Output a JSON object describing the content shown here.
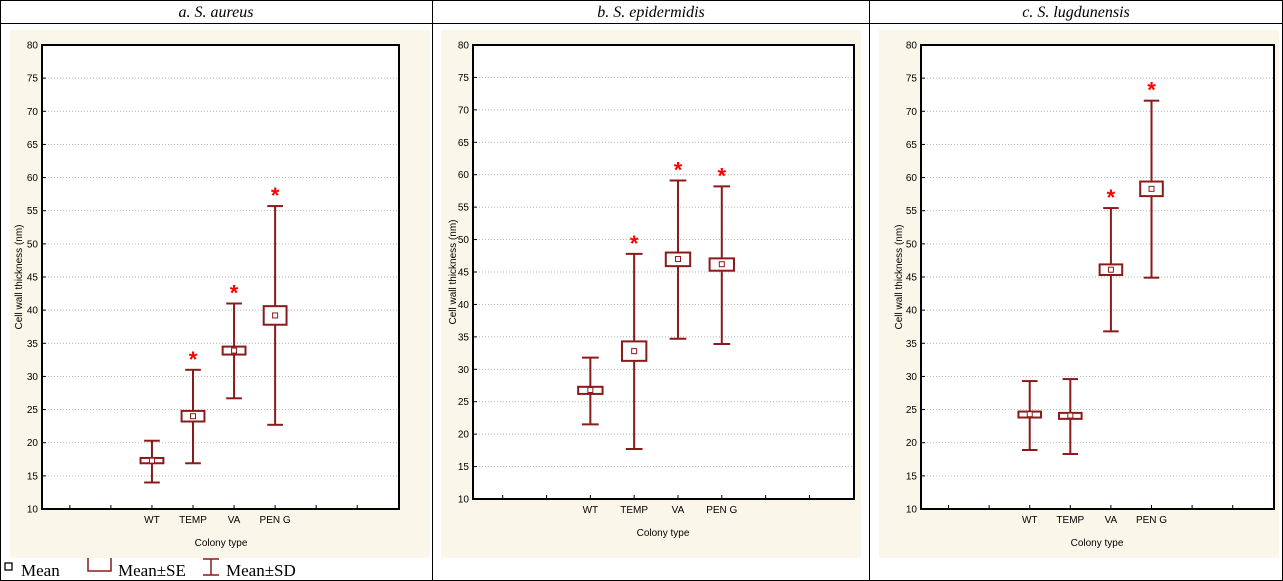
{
  "legend": {
    "mean_label": "Mean",
    "se_label": "Mean±SE",
    "sd_label": "Mean±SD"
  },
  "colors": {
    "box": "#8b1a1a",
    "star": "#ff0000",
    "panel_bg": "#fbf6ea",
    "grid": "#999999"
  },
  "chart_data": [
    {
      "type": "box",
      "title": "a. S. aureus",
      "xlabel": "Colony type",
      "ylabel": "Cell wall thickness (nm)",
      "ylim": [
        10,
        80
      ],
      "yticks": [
        10,
        15,
        20,
        25,
        30,
        35,
        40,
        45,
        50,
        55,
        60,
        65,
        70,
        75,
        80
      ],
      "grid": true,
      "categories": [
        "WT",
        "TEMP",
        "VA",
        "PEN G"
      ],
      "mean": [
        17.3,
        24.0,
        33.9,
        39.2
      ],
      "se_low": [
        16.9,
        23.2,
        33.3,
        37.8
      ],
      "se_high": [
        17.7,
        24.8,
        34.5,
        40.6
      ],
      "sd_low": [
        14.0,
        16.9,
        26.7,
        22.7
      ],
      "sd_high": [
        20.3,
        31.0,
        41.0,
        55.7
      ],
      "significant": [
        false,
        true,
        true,
        true
      ],
      "star_label": "*"
    },
    {
      "type": "box",
      "title": "b. S. epidermidis",
      "xlabel": "Colony type",
      "ylabel": "Cell wall thickness (nm)",
      "ylim": [
        10,
        80
      ],
      "yticks": [
        10,
        15,
        20,
        25,
        30,
        35,
        40,
        45,
        50,
        55,
        60,
        65,
        70,
        75,
        80
      ],
      "grid": true,
      "categories": [
        "WT",
        "TEMP",
        "VA",
        "PEN G"
      ],
      "mean": [
        26.8,
        32.8,
        47.0,
        46.2
      ],
      "se_low": [
        26.2,
        31.3,
        45.9,
        45.2
      ],
      "se_high": [
        27.3,
        34.3,
        48.0,
        47.1
      ],
      "sd_low": [
        21.5,
        17.7,
        34.7,
        33.9
      ],
      "sd_high": [
        31.8,
        47.8,
        59.1,
        58.2
      ],
      "significant": [
        false,
        true,
        true,
        true
      ],
      "star_label": "*"
    },
    {
      "type": "box",
      "title": "c. S. lugdunensis",
      "xlabel": "Colony type",
      "ylabel": "Cell wall thickness (nm)",
      "ylim": [
        10,
        80
      ],
      "yticks": [
        10,
        15,
        20,
        25,
        30,
        35,
        40,
        45,
        50,
        55,
        60,
        65,
        70,
        75,
        80
      ],
      "grid": true,
      "categories": [
        "WT",
        "TEMP",
        "VA",
        "PEN G"
      ],
      "mean": [
        24.3,
        24.1,
        46.1,
        58.3
      ],
      "se_low": [
        23.8,
        23.6,
        45.3,
        57.2
      ],
      "se_high": [
        24.7,
        24.5,
        46.9,
        59.4
      ],
      "sd_low": [
        18.9,
        18.3,
        36.8,
        44.9
      ],
      "sd_high": [
        29.3,
        29.6,
        55.4,
        71.6
      ],
      "significant": [
        false,
        false,
        true,
        true
      ],
      "star_label": "*"
    }
  ]
}
